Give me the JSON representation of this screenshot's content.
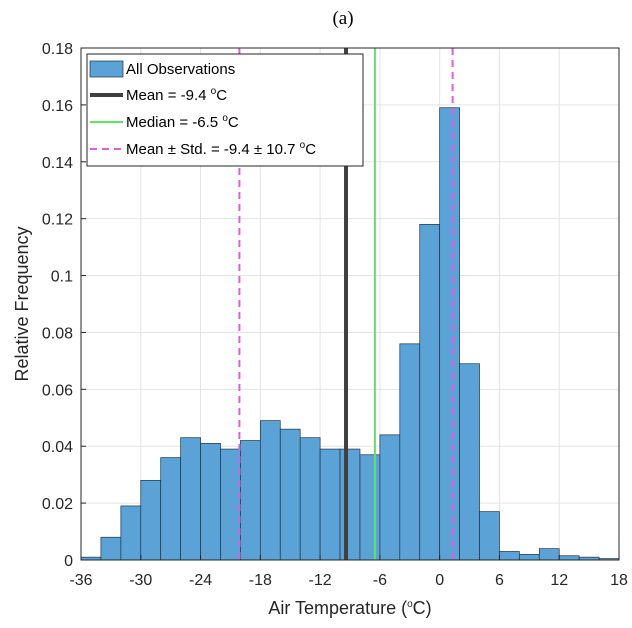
{
  "chart_data": {
    "type": "bar",
    "title": "(a)",
    "xlabel": "Air Temperature (",
    "xlabel_unit_sup": "o",
    "xlabel_unit_end": "C)",
    "ylabel": "Relative Frequency",
    "xlim": [
      -36,
      18
    ],
    "ylim": [
      0,
      0.18
    ],
    "xticks": [
      "-36",
      "-30",
      "-24",
      "-18",
      "-12",
      "-6",
      "0",
      "6",
      "12",
      "18"
    ],
    "yticks": [
      "0",
      "0.02",
      "0.04",
      "0.06",
      "0.08",
      "0.1",
      "0.12",
      "0.14",
      "0.16",
      "0.18"
    ],
    "grid": true,
    "bin_width": 2,
    "bin_edges_start": -36,
    "values": [
      0.001,
      0.008,
      0.019,
      0.028,
      0.036,
      0.043,
      0.041,
      0.039,
      0.042,
      0.049,
      0.046,
      0.043,
      0.039,
      0.039,
      0.037,
      0.044,
      0.076,
      0.118,
      0.159,
      0.069,
      0.017,
      0.003,
      0.002,
      0.004,
      0.0015,
      0.001,
      0.0005
    ],
    "bar_color": "#5ba3d6",
    "series": [
      {
        "name": "All Observations",
        "kind": "histogram",
        "color": "#5ba3d6"
      },
      {
        "name": "Mean = -9.4 ",
        "sup": "o",
        "unit": "C",
        "kind": "vline",
        "x": -9.4,
        "color": "#404040",
        "style": "solid",
        "thick": true
      },
      {
        "name": "Median = -6.5 ",
        "sup": "o",
        "unit": "C",
        "kind": "vline",
        "x": -6.5,
        "color": "#5ce65c",
        "style": "solid"
      },
      {
        "name": "Mean ± Std. = -9.4 ± 10.7 ",
        "sup": "o",
        "unit": "C",
        "kind": "vline-pair",
        "x": [
          -20.1,
          1.3
        ],
        "color": "#e05ce0",
        "style": "dashed"
      }
    ],
    "legend_position": "top-left"
  }
}
